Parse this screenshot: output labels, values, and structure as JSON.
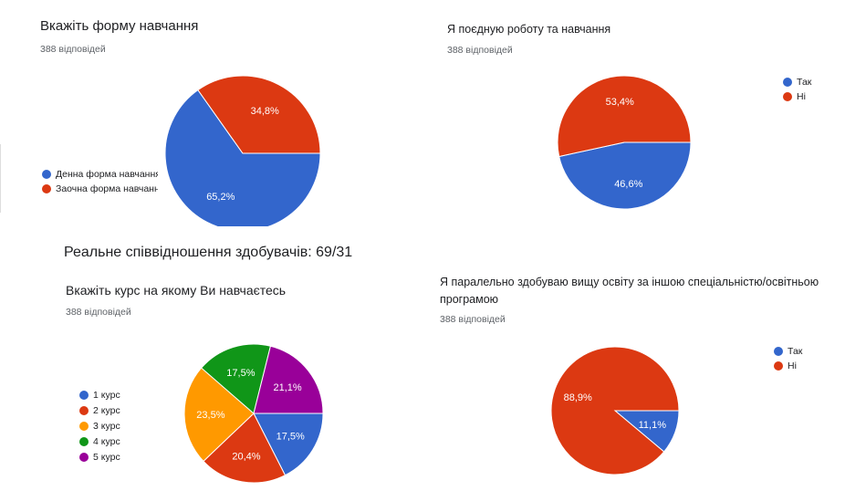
{
  "note": "Реальне співвідношення  здобувачів:  69/31",
  "chart_data": [
    {
      "type": "pie",
      "title": "Вкажіть форму навчання",
      "subtitle": "388 відповідей",
      "legend_position": "left-bottom",
      "slices": [
        {
          "label": "Денна форма навчання",
          "value": 65.2,
          "display": "65,2%",
          "color": "#3366cc"
        },
        {
          "label": "Заочна форма навчання",
          "value": 34.8,
          "display": "34,8%",
          "color": "#dc3912"
        }
      ]
    },
    {
      "type": "pie",
      "title": "Я поєдную роботу та навчання",
      "subtitle": "388 відповідей",
      "legend_position": "top-right",
      "slices": [
        {
          "label": "Так",
          "value": 46.6,
          "display": "46,6%",
          "color": "#3366cc"
        },
        {
          "label": "Ні",
          "value": 53.4,
          "display": "53,4%",
          "color": "#dc3912"
        }
      ]
    },
    {
      "type": "pie",
      "title": "Вкажіть курс на якому Ви навчаєтесь",
      "subtitle": "388 відповідей",
      "legend_position": "left",
      "slices": [
        {
          "label": "1 курс",
          "value": 17.5,
          "display": "17,5%",
          "color": "#3366cc"
        },
        {
          "label": "2 курс",
          "value": 20.4,
          "display": "20,4%",
          "color": "#dc3912"
        },
        {
          "label": "3 курс",
          "value": 23.5,
          "display": "23,5%",
          "color": "#ff9900"
        },
        {
          "label": "4 курс",
          "value": 17.5,
          "display": "17,5%",
          "color": "#109618"
        },
        {
          "label": "5 курс",
          "value": 21.1,
          "display": "21,1%",
          "color": "#990099"
        }
      ]
    },
    {
      "type": "pie",
      "title": "Я паралельно здобуваю вищу освіту за іншою спеціальністю/освітньою програмою",
      "subtitle": "388 відповідей",
      "legend_position": "top-right",
      "slices": [
        {
          "label": "Так",
          "value": 11.1,
          "display": "11,1%",
          "color": "#3366cc"
        },
        {
          "label": "Ні",
          "value": 88.9,
          "display": "88,9%",
          "color": "#dc3912"
        }
      ]
    }
  ]
}
